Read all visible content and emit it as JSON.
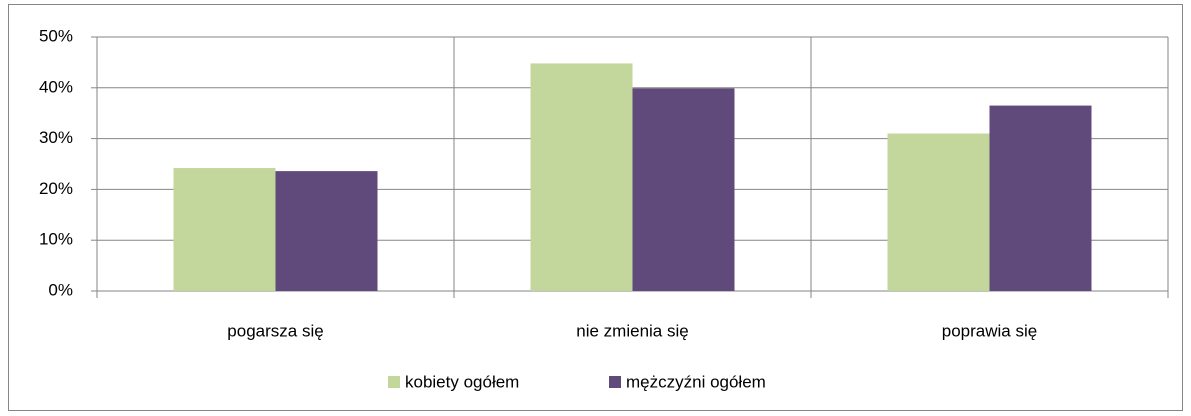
{
  "chart_data": {
    "type": "bar",
    "categories": [
      "pogarsza się",
      "nie zmienia się",
      "poprawia się"
    ],
    "series": [
      {
        "name": "kobiety ogółem",
        "color": "#c3d69b",
        "values": [
          24.2,
          44.8,
          31.0
        ]
      },
      {
        "name": "mężczyźni ogółem",
        "color": "#604a7b",
        "values": [
          23.6,
          39.9,
          36.5
        ]
      }
    ],
    "ylim": [
      0,
      50
    ],
    "yticks": [
      {
        "value": 0,
        "label": "0%"
      },
      {
        "value": 10,
        "label": "10%"
      },
      {
        "value": 20,
        "label": "20%"
      },
      {
        "value": 30,
        "label": "30%"
      },
      {
        "value": 40,
        "label": "40%"
      },
      {
        "value": 50,
        "label": "50%"
      }
    ],
    "grid": true,
    "legend": "bottom"
  }
}
